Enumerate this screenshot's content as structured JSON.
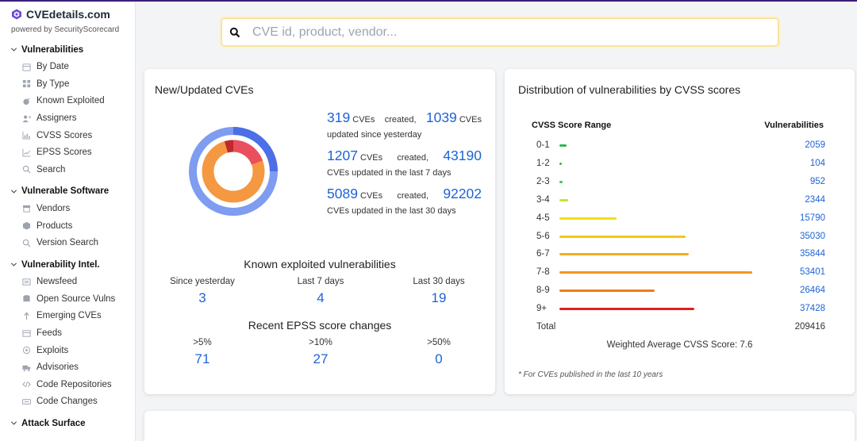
{
  "brand": {
    "title": "CVEdetails.com",
    "subtitle": "powered by SecurityScorecard"
  },
  "sidebar": {
    "sections": [
      {
        "label": "Vulnerabilities",
        "items": [
          "By Date",
          "By Type",
          "Known Exploited",
          "Assigners",
          "CVSS Scores",
          "EPSS Scores",
          "Search"
        ]
      },
      {
        "label": "Vulnerable Software",
        "items": [
          "Vendors",
          "Products",
          "Version Search"
        ]
      },
      {
        "label": "Vulnerability Intel.",
        "items": [
          "Newsfeed",
          "Open Source Vulns",
          "Emerging CVEs",
          "Feeds",
          "Exploits",
          "Advisories",
          "Code Repositories",
          "Code Changes"
        ]
      },
      {
        "label": "Attack Surface",
        "items": []
      }
    ]
  },
  "search": {
    "placeholder": "CVE id, product, vendor..."
  },
  "new_updated": {
    "title": "New/Updated CVEs",
    "stats": [
      {
        "created": "319",
        "created_label": "CVEs",
        "created_word": "created,",
        "updated": "1039",
        "updated_label": "CVEs",
        "tail": "updated since yesterday"
      },
      {
        "created": "1207",
        "created_label": "CVEs",
        "created_word": "created,",
        "updated": "43190",
        "updated_label": "",
        "tail": "CVEs updated in the last 7 days"
      },
      {
        "created": "5089",
        "created_label": "CVEs",
        "created_word": "created,",
        "updated": "92202",
        "updated_label": "",
        "tail": "CVEs updated in the last 30 days"
      }
    ],
    "donut_colors": {
      "outer": "#7e9cf0",
      "outer_dark": "#4c6ee6",
      "inner_orange": "#f59842",
      "inner_red": "#ea4f5d",
      "inner_darkred": "#c1272d"
    }
  },
  "known_exploited": {
    "title": "Known exploited vulnerabilities",
    "cols": [
      {
        "label": "Since yesterday",
        "value": "3"
      },
      {
        "label": "Last 7 days",
        "value": "4"
      },
      {
        "label": "Last 30 days",
        "value": "19"
      }
    ]
  },
  "epss": {
    "title": "Recent EPSS score changes",
    "cols": [
      {
        "label": ">5%",
        "value": "71"
      },
      {
        "label": ">10%",
        "value": "27"
      },
      {
        "label": ">50%",
        "value": "0"
      }
    ]
  },
  "distribution": {
    "title": "Distribution of vulnerabilities by CVSS scores",
    "col_range": "CVSS Score Range",
    "col_vulns": "Vulnerabilities",
    "rows": [
      {
        "range": "0-1",
        "count": "2059",
        "value": 2059,
        "color": "#2db84a"
      },
      {
        "range": "1-2",
        "count": "104",
        "value": 104,
        "color": "#2db84a"
      },
      {
        "range": "2-3",
        "count": "952",
        "value": 952,
        "color": "#3ec93b"
      },
      {
        "range": "3-4",
        "count": "2344",
        "value": 2344,
        "color": "#c6e52a"
      },
      {
        "range": "4-5",
        "count": "15790",
        "value": 15790,
        "color": "#f2de1a"
      },
      {
        "range": "5-6",
        "count": "35030",
        "value": 35030,
        "color": "#f7c51c"
      },
      {
        "range": "6-7",
        "count": "35844",
        "value": 35844,
        "color": "#f5ad20"
      },
      {
        "range": "7-8",
        "count": "53401",
        "value": 53401,
        "color": "#f39520"
      },
      {
        "range": "8-9",
        "count": "26464",
        "value": 26464,
        "color": "#f07a1a"
      },
      {
        "range": "9+",
        "count": "37428",
        "value": 37428,
        "color": "#e01e1e"
      }
    ],
    "total_label": "Total",
    "total": "209416",
    "weighted": "Weighted Average CVSS Score: 7.6",
    "footnote": "* For CVEs published in the last 10 years"
  }
}
